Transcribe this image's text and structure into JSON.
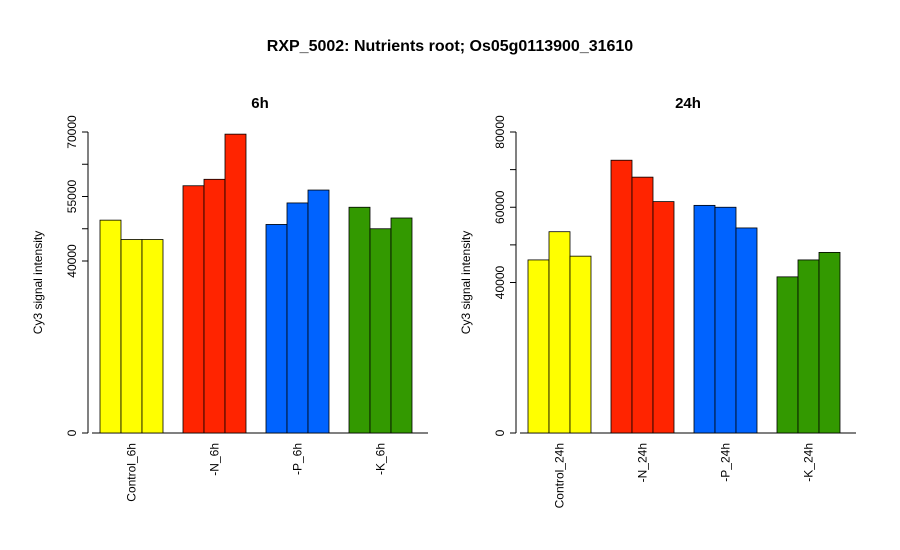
{
  "figure": {
    "title": "RXP_5002: Nutrients root; Os05g0113900_31610"
  },
  "chart_data": [
    {
      "type": "bar",
      "title": "6h",
      "ylabel": "Cy3 signal intensity",
      "ylim": [
        0,
        70000
      ],
      "yticks": [
        0,
        40000,
        55000,
        70000
      ],
      "categories": [
        "Control_6h",
        "-N_6h",
        "-P_6h",
        "-K_6h"
      ],
      "groups": [
        {
          "label": "Control_6h",
          "color": "#ffff00",
          "values": [
            49500,
            45000,
            45000
          ]
        },
        {
          "label": "-N_6h",
          "color": "#ff2400",
          "values": [
            57500,
            59000,
            69500
          ]
        },
        {
          "label": "-P_6h",
          "color": "#0063ff",
          "values": [
            48500,
            53500,
            56500
          ]
        },
        {
          "label": "-K_6h",
          "color": "#339900",
          "values": [
            52500,
            47500,
            50000
          ]
        }
      ]
    },
    {
      "type": "bar",
      "title": "24h",
      "ylabel": "Cy3 signal intensity",
      "ylim": [
        0,
        80000
      ],
      "yticks": [
        0,
        40000,
        60000,
        80000
      ],
      "categories": [
        "Control_24h",
        "-N_24h",
        "-P_24h",
        "-K_24h"
      ],
      "groups": [
        {
          "label": "Control_24h",
          "color": "#ffff00",
          "values": [
            46000,
            53500,
            47000
          ]
        },
        {
          "label": "-N_24h",
          "color": "#ff2400",
          "values": [
            72500,
            68000,
            61500
          ]
        },
        {
          "label": "-P_24h",
          "color": "#0063ff",
          "values": [
            60500,
            60000,
            54500
          ]
        },
        {
          "label": "-K_24h",
          "color": "#339900",
          "values": [
            41500,
            46000,
            48000
          ]
        }
      ]
    }
  ]
}
